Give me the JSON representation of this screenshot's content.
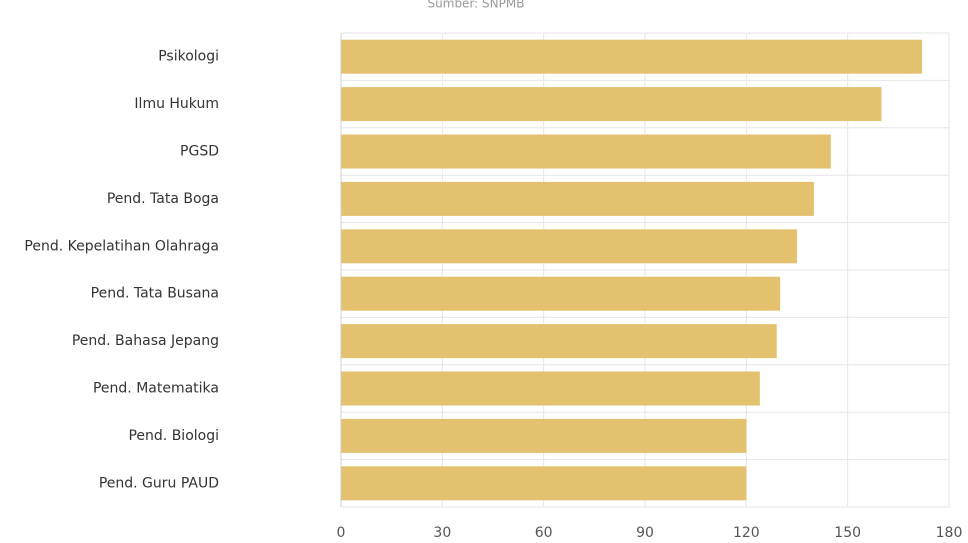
{
  "chart_data": {
    "type": "barh",
    "source": "Sumber: SNPMB",
    "categories": [
      "Psikologi",
      "Ilmu Hukum",
      "PGSD",
      "Pend. Tata Boga",
      "Pend. Kepelatihan Olahraga",
      "Pend. Tata Busana",
      "Pend. Bahasa Jepang",
      "Pend. Matematika",
      "Pend. Biologi",
      "Pend. Guru PAUD"
    ],
    "values": [
      172,
      160,
      145,
      140,
      135,
      130,
      129,
      124,
      120,
      120
    ],
    "color": "#e3c16f",
    "xlim": [
      0,
      180
    ],
    "xticks": [
      0,
      30,
      60,
      90,
      120,
      150,
      180
    ],
    "grid": true
  }
}
